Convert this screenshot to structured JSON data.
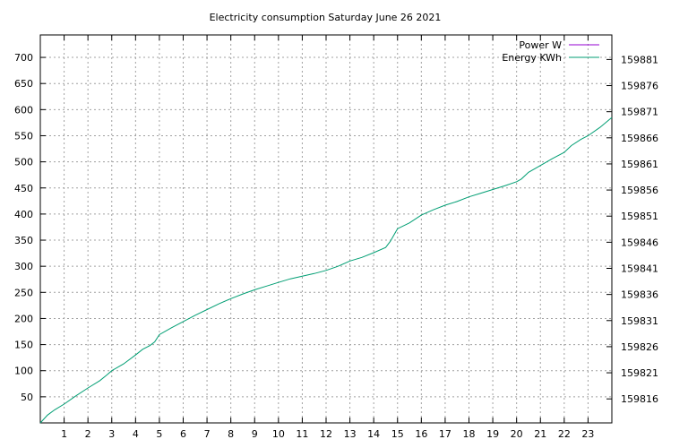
{
  "chart_data": {
    "type": "line",
    "title": "Electricity consumption Saturday June 26 2021",
    "xlabel": "",
    "ylabel": "",
    "y2label": "",
    "xlim": [
      0,
      24
    ],
    "ylim": [
      0,
      743
    ],
    "y2lim": [
      159811.4,
      159885.7
    ],
    "x_ticks": [
      1,
      2,
      3,
      4,
      5,
      6,
      7,
      8,
      9,
      10,
      11,
      12,
      13,
      14,
      15,
      16,
      17,
      18,
      19,
      20,
      21,
      22,
      23
    ],
    "y_ticks": [
      50,
      100,
      150,
      200,
      250,
      300,
      350,
      400,
      450,
      500,
      550,
      600,
      650,
      700
    ],
    "y2_ticks": [
      159816,
      159821,
      159826,
      159831,
      159836,
      159841,
      159846,
      159851,
      159856,
      159861,
      159866,
      159871,
      159876,
      159881
    ],
    "grid": true,
    "legend_position": "top-right",
    "series": [
      {
        "name": "Power W",
        "axis": "y",
        "color": "#9400d3",
        "x": [],
        "values": []
      },
      {
        "name": "Energy KWh",
        "axis": "y2",
        "color": "#009e73",
        "x": [
          0,
          0.3,
          0.6,
          1,
          1.5,
          2,
          2.5,
          2.8,
          3,
          3.5,
          4,
          4.3,
          4.6,
          4.8,
          5,
          5.5,
          6,
          6.5,
          7,
          7.5,
          8,
          8.5,
          9,
          9.5,
          10,
          10.5,
          11,
          11.5,
          12,
          12.5,
          13,
          13.5,
          14,
          14.5,
          14.7,
          14.9,
          15,
          15.5,
          16,
          16.5,
          17,
          17.5,
          18,
          18.5,
          19,
          19.5,
          20,
          20.2,
          20.5,
          21,
          21.5,
          22,
          22.3,
          22.7,
          23,
          23.5,
          24
        ],
        "values": [
          159811.4,
          159812.9,
          159813.9,
          159815.0,
          159816.6,
          159818.1,
          159819.5,
          159820.6,
          159821.4,
          159822.7,
          159824.4,
          159825.5,
          159826.2,
          159826.9,
          159828.3,
          159829.6,
          159830.8,
          159832.0,
          159833.1,
          159834.2,
          159835.2,
          159836.1,
          159836.9,
          159837.6,
          159838.3,
          159839.0,
          159839.5,
          159840.0,
          159840.6,
          159841.4,
          159842.4,
          159843.1,
          159844.0,
          159845.0,
          159846.2,
          159847.8,
          159848.6,
          159849.7,
          159851.2,
          159852.2,
          159853.1,
          159853.8,
          159854.7,
          159855.4,
          159856.1,
          159856.8,
          159857.6,
          159858.1,
          159859.4,
          159860.7,
          159862.0,
          159863.2,
          159864.5,
          159865.7,
          159866.4,
          159868.0,
          159869.9
        ]
      }
    ]
  }
}
